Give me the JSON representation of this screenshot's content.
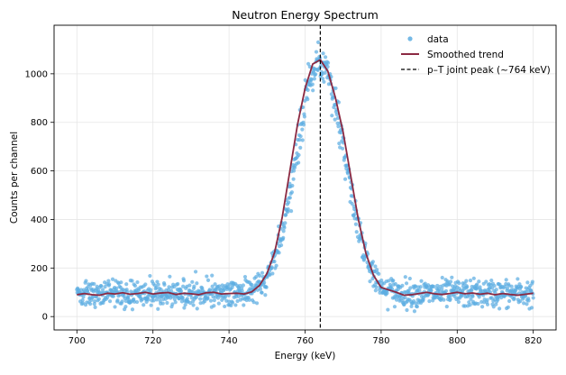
{
  "chart_data": {
    "type": "scatter",
    "title": "Neutron Energy Spectrum",
    "xlabel": "Energy (keV)",
    "ylabel": "Counts per channel",
    "xlim": [
      694,
      826
    ],
    "ylim": [
      -55,
      1200
    ],
    "xticks": [
      700,
      720,
      740,
      760,
      780,
      800,
      820
    ],
    "yticks": [
      0,
      200,
      400,
      600,
      800,
      1000
    ],
    "grid": true,
    "legend_position": "top-right",
    "colors": {
      "data": "#5dade2",
      "trend": "#8b2942",
      "peak_line": "#000000"
    },
    "series": [
      {
        "name": "data",
        "kind": "scatter",
        "x_range": [
          700,
          820
        ],
        "point_count": 1200,
        "baseline_mean": 95,
        "noise_sd": 28,
        "peak": {
          "center": 764,
          "amplitude": 960,
          "sigma": 6.2
        }
      },
      {
        "name": "Smoothed trend",
        "kind": "line",
        "x": [
          700,
          702,
          704,
          706,
          708,
          710,
          712,
          714,
          716,
          718,
          720,
          722,
          724,
          726,
          728,
          730,
          732,
          734,
          736,
          738,
          740,
          742,
          744,
          746,
          748,
          750,
          752,
          754,
          756,
          758,
          760,
          762,
          764,
          766,
          768,
          770,
          772,
          774,
          776,
          778,
          780,
          782,
          784,
          786,
          788,
          790,
          792,
          794,
          796,
          798,
          800,
          802,
          804,
          806,
          808,
          810,
          812,
          814,
          816,
          818,
          820
        ],
        "y": [
          90,
          95,
          90,
          88,
          96,
          93,
          98,
          92,
          95,
          100,
          93,
          97,
          99,
          91,
          96,
          94,
          90,
          98,
          100,
          93,
          95,
          96,
          93,
          102,
          128,
          178,
          265,
          410,
          600,
          790,
          940,
          1040,
          1058,
          1010,
          900,
          760,
          580,
          400,
          260,
          170,
          120,
          110,
          100,
          88,
          90,
          95,
          100,
          94,
          91,
          95,
          100,
          94,
          97,
          92,
          96,
          90,
          95,
          91,
          88,
          92,
          96
        ]
      },
      {
        "name": "p–T joint peak (~764 keV)",
        "kind": "vline",
        "x": 764
      }
    ]
  }
}
